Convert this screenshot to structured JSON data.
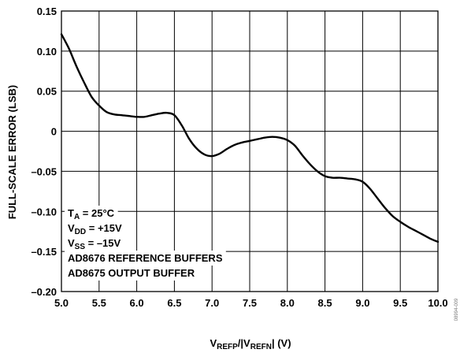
{
  "chart_data": {
    "type": "line",
    "xlabel": {
      "main": "V",
      "sub1": "REFP",
      "mid": "/|V",
      "sub2": "REFN",
      "tail": "| (V)"
    },
    "ylabel": "FULL-SCALE ERROR (LSB)",
    "xlim": [
      5.0,
      10.0
    ],
    "ylim": [
      -0.2,
      0.15
    ],
    "x_ticks": [
      "5.0",
      "5.5",
      "6.0",
      "6.5",
      "7.0",
      "7.5",
      "8.0",
      "8.5",
      "9.0",
      "9.5",
      "10.0"
    ],
    "y_ticks": [
      "0.15",
      "0.10",
      "0.05",
      "0",
      "–0.05",
      "–0.10",
      "–0.15",
      "–0.20"
    ],
    "grid": true,
    "series": [
      {
        "x": [
          5.0,
          5.1,
          5.2,
          5.3,
          5.4,
          5.5,
          5.6,
          5.7,
          5.8,
          5.9,
          6.0,
          6.1,
          6.2,
          6.3,
          6.4,
          6.5,
          6.6,
          6.7,
          6.8,
          6.9,
          7.0,
          7.1,
          7.2,
          7.3,
          7.4,
          7.5,
          7.6,
          7.7,
          7.8,
          7.9,
          8.0,
          8.1,
          8.2,
          8.3,
          8.4,
          8.5,
          8.6,
          8.7,
          8.8,
          8.9,
          9.0,
          9.1,
          9.2,
          9.3,
          9.4,
          9.5,
          9.6,
          9.7,
          9.8,
          9.9,
          10.0
        ],
        "y": [
          0.121,
          0.103,
          0.081,
          0.061,
          0.043,
          0.032,
          0.024,
          0.021,
          0.02,
          0.019,
          0.018,
          0.018,
          0.02,
          0.022,
          0.023,
          0.02,
          0.007,
          -0.01,
          -0.022,
          -0.029,
          -0.031,
          -0.028,
          -0.022,
          -0.017,
          -0.014,
          -0.012,
          -0.01,
          -0.008,
          -0.007,
          -0.008,
          -0.011,
          -0.018,
          -0.03,
          -0.041,
          -0.05,
          -0.056,
          -0.058,
          -0.058,
          -0.059,
          -0.06,
          -0.063,
          -0.072,
          -0.084,
          -0.096,
          -0.106,
          -0.113,
          -0.119,
          -0.124,
          -0.129,
          -0.134,
          -0.138
        ]
      }
    ],
    "annotation": [
      {
        "pre": "T",
        "sub": "A",
        "post": " = 25°C"
      },
      {
        "pre": "V",
        "sub": "DD",
        "post": " = +15V"
      },
      {
        "pre": "V",
        "sub": "SS",
        "post": " = –15V"
      },
      {
        "pre": "AD8676 REFERENCE BUFFERS",
        "sub": "",
        "post": ""
      },
      {
        "pre": "AD8675 OUTPUT BUFFER",
        "sub": "",
        "post": ""
      }
    ],
    "figure_id": "08994-009",
    "line_color": "#000000"
  }
}
